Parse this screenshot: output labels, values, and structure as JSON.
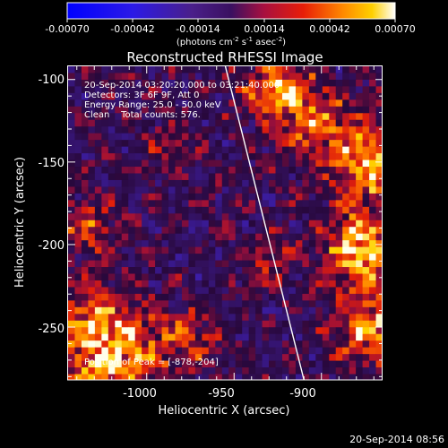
{
  "colorbar": {
    "ticks": [
      "-0.00070",
      "-0.00042",
      "-0.00014",
      "0.00014",
      "0.00042",
      "0.00070"
    ],
    "units_prefix": "(photons cm",
    "units_exp1": "-2",
    "units_mid": " s",
    "units_exp2": "-1",
    "units_mid2": " asec",
    "units_exp3": "-2",
    "units_suffix": ")"
  },
  "plot": {
    "title": "Reconstructed RHESSI Image",
    "time_range": "20-Sep-2014 03:20:20.000 to 03:21:40.000",
    "detectors": "Detectors: 3F 6F 9F, Att 0",
    "energy": "Energy Range: 25.0 - 50.0 keV",
    "clean": "Clean    Total counts: 576.",
    "peak": "Position of Peak = [-878,-204]",
    "xlabel": "Heliocentric X (arcsec)",
    "ylabel": "Heliocentric Y (arcsec)",
    "xticks": [
      "-1000",
      "-950",
      "-900"
    ],
    "yticks": [
      "-100",
      "-150",
      "-200",
      "-250"
    ]
  },
  "footer": {
    "timestamp": "20-Sep-2014 08:56"
  },
  "chart_data": {
    "type": "heatmap",
    "title": "Reconstructed RHESSI Image",
    "xlabel": "Heliocentric X (arcsec)",
    "ylabel": "Heliocentric Y (arcsec)",
    "xlim": [
      -1045,
      -865
    ],
    "ylim": [
      -282,
      -92
    ],
    "color_range": [
      -0.0007,
      0.0007
    ],
    "peak_position": [
      -878,
      -204
    ],
    "limb_line": [
      [
        -955,
        -92
      ],
      [
        -910,
        -282
      ]
    ]
  },
  "colors": {
    "background": "#000000",
    "text": "#ffffff",
    "limb": "#ffffff"
  }
}
